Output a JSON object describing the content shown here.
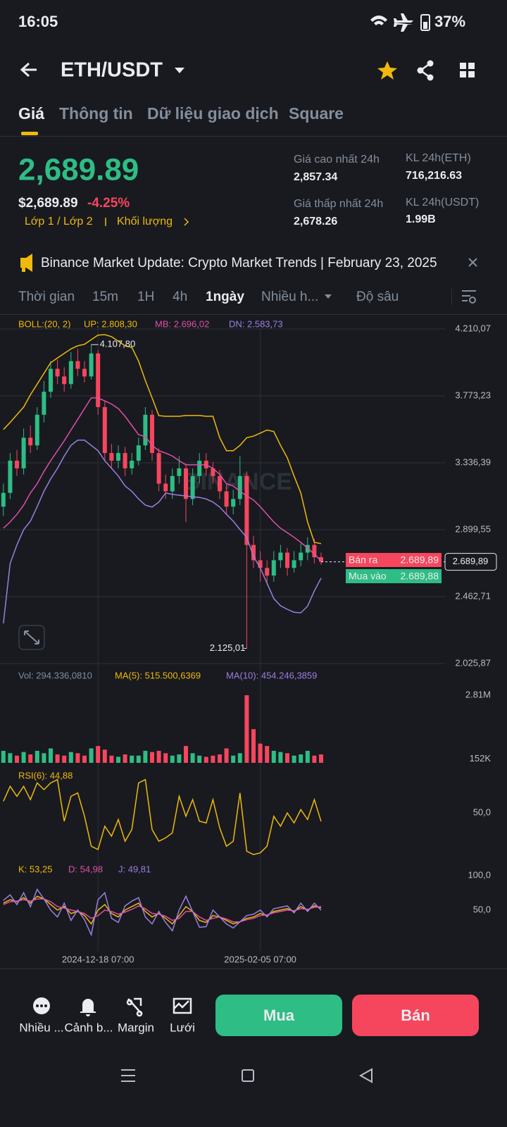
{
  "status": {
    "time": "16:05",
    "battery": "37%"
  },
  "header": {
    "pair": "ETH/USDT"
  },
  "tabs": [
    "Giá",
    "Thông tin",
    "Dữ liệu giao dịch",
    "Square"
  ],
  "price": {
    "last": "2,689.89",
    "usd": "$2,689.89",
    "change": "-4.25%",
    "tags": [
      "Lớp 1 / Lớp 2",
      "Khối lượng"
    ]
  },
  "stats": [
    {
      "label": "Giá cao nhất 24h",
      "value": "2,857.34"
    },
    {
      "label": "Giá thấp nhất 24h",
      "value": "2,678.26"
    },
    {
      "label": "KL 24h(ETH)",
      "value": "716,216.63"
    },
    {
      "label": "KL 24h(USDT)",
      "value": "1.99B"
    }
  ],
  "announcement": "Binance Market Update: Crypto Market Trends | February 23, 2025",
  "intervals": [
    "Thời gian",
    "15m",
    "1H",
    "4h",
    "1ngày",
    "Nhiều h...",
    "Độ sâu"
  ],
  "indicators": {
    "boll": [
      "BOLL:(20, 2)",
      "UP: 2.808,30",
      "MB: 2.696,02",
      "DN: 2.583,73"
    ],
    "vol": [
      "Vol: 294.336,0810",
      "MA(5): 515.500,6369",
      "MA(10): 454.246,3859"
    ],
    "rsi": [
      "RSI(6): 44,88"
    ],
    "kdj": [
      "K: 53,25",
      "D: 54,98",
      "J: 49,81"
    ]
  },
  "order_book": {
    "sell_label": "Bán ra",
    "sell_price": "2.689,89",
    "buy_label": "Mua vào",
    "buy_price": "2.689,88"
  },
  "watermark": "BINANCE",
  "bottom": {
    "actions": [
      "Nhiều ...",
      "Cảnh b...",
      "Margin",
      "Lưới"
    ],
    "buy": "Mua",
    "sell": "Bán"
  },
  "chart_data": [
    {
      "type": "candlestick",
      "categories": [
        null,
        null,
        null,
        null,
        null,
        null,
        null,
        null,
        null,
        null,
        null,
        null,
        null,
        null,
        "2024-12-18 07:00",
        null,
        null,
        null,
        null,
        null,
        null,
        null,
        null,
        null,
        null,
        null,
        null,
        null,
        null,
        null,
        null,
        null,
        null,
        null,
        null,
        null,
        null,
        null,
        "2025-02-05 07:00",
        null,
        null,
        null,
        null,
        null,
        null,
        null,
        null,
        null
      ],
      "open": [
        3050,
        3140,
        3350,
        3300,
        3500,
        3450,
        3650,
        3800,
        3950,
        3900,
        3850,
        4000,
        3950,
        3900,
        4050,
        3700,
        3400,
        3350,
        3400,
        3300,
        3350,
        3450,
        3650,
        3400,
        3200,
        3150,
        3250,
        3300,
        3100,
        3250,
        3350,
        3300,
        3250,
        3150,
        3050,
        3100,
        3250,
        2800,
        2700,
        2650,
        2600,
        2700,
        2750,
        2650,
        2700,
        2750,
        2800,
        2720
      ],
      "high": [
        3200,
        3400,
        3420,
        3560,
        3580,
        3700,
        3870,
        4000,
        4010,
        3960,
        4060,
        4080,
        4000,
        4107.8,
        4070,
        3740,
        3460,
        3450,
        3440,
        3400,
        3500,
        3700,
        3680,
        3430,
        3260,
        3300,
        3380,
        3330,
        3300,
        3400,
        3400,
        3340,
        3290,
        3200,
        3160,
        3380,
        3280,
        2860,
        2760,
        2700,
        2760,
        2800,
        2780,
        2760,
        2810,
        2850,
        2840,
        2750
      ],
      "low": [
        2990,
        3100,
        3250,
        3260,
        3400,
        3420,
        3600,
        3760,
        3850,
        3800,
        3820,
        3900,
        3860,
        3880,
        3650,
        3350,
        3300,
        3300,
        3250,
        3260,
        3320,
        3420,
        3350,
        3150,
        3100,
        3100,
        3200,
        2950,
        3060,
        3200,
        3250,
        3200,
        3100,
        3000,
        3000,
        3060,
        2125.01,
        2650,
        2560,
        2540,
        2560,
        2650,
        2600,
        2620,
        2660,
        2700,
        2680,
        2670
      ],
      "close": [
        3140,
        3350,
        3300,
        3500,
        3450,
        3650,
        3800,
        3950,
        3900,
        3850,
        4000,
        3950,
        3900,
        4050,
        3700,
        3400,
        3350,
        3400,
        3300,
        3350,
        3450,
        3650,
        3400,
        3200,
        3150,
        3250,
        3300,
        3100,
        3250,
        3350,
        3300,
        3250,
        3150,
        3050,
        3100,
        3250,
        2800,
        2700,
        2650,
        2600,
        2700,
        2750,
        2650,
        2700,
        2750,
        2800,
        2720,
        2689.89
      ],
      "up_color": "#2ebd85",
      "down_color": "#f6465d",
      "series": [
        {
          "color": "#f0b90b",
          "values": [
            3553,
            3600,
            3650,
            3700,
            3780,
            3850,
            3920,
            3990,
            4020,
            4050,
            4080,
            4100,
            4110,
            4140,
            4170,
            4173,
            4160,
            4130,
            4100,
            4090,
            4000,
            3874,
            3760,
            3644,
            3640,
            3640,
            3640,
            3645,
            3645,
            3645,
            3640,
            3640,
            3500,
            3415,
            3415,
            3450,
            3500,
            3510,
            3530,
            3550,
            3540,
            3450,
            3369,
            3250,
            3139,
            2950,
            2817,
            2808.3
          ]
        },
        {
          "color": "#e04fa5",
          "values": [
            2909,
            2950,
            3000,
            3060,
            3139,
            3200,
            3280,
            3350,
            3415,
            3480,
            3550,
            3620,
            3690,
            3760,
            3760,
            3740,
            3720,
            3690,
            3640,
            3580,
            3520,
            3507,
            3450,
            3415,
            3400,
            3380,
            3350,
            3323,
            3323,
            3323,
            3323,
            3300,
            3260,
            3200,
            3185,
            3150,
            3120,
            3093,
            3050,
            3000,
            2950,
            2909,
            2880,
            2850,
            2817,
            2780,
            2740,
            2696.02
          ]
        },
        {
          "color": "#9c7fe0",
          "values": [
            2288,
            2679,
            2800,
            2900,
            2955,
            3050,
            3150,
            3231,
            3300,
            3380,
            3450,
            3484,
            3484,
            3450,
            3415,
            3350,
            3300,
            3250,
            3185,
            3150,
            3100,
            3060,
            3047,
            3080,
            3139,
            3130,
            3125,
            3120,
            3115,
            3110,
            3100,
            3080,
            3047,
            3000,
            2955,
            2900,
            2850,
            2725,
            2650,
            2550,
            2450,
            2403,
            2380,
            2360,
            2357,
            2400,
            2500,
            2583.73
          ]
        }
      ],
      "annotations": [
        {
          "value": 4107.8,
          "label": "4.107,80"
        },
        {
          "value": 2125.01,
          "label": "2.125,01"
        }
      ],
      "last_price": {
        "value": 2689.89,
        "label": "2.689,89"
      },
      "ylim": [
        2025.87,
        4210.07
      ],
      "yticks": [
        {
          "value": 4210.07,
          "label": "4.210,07"
        },
        {
          "value": 3773.23,
          "label": "3.773,23"
        },
        {
          "value": 3336.39,
          "label": "3.336,39"
        },
        {
          "value": 2899.55,
          "label": "2.899,55"
        },
        {
          "value": 2462.71,
          "label": "2.462,71"
        },
        {
          "value": 2025.87,
          "label": "2.025,87"
        }
      ],
      "grid": true
    },
    {
      "type": "bar",
      "values": [
        0.5,
        0.4,
        0.3,
        0.45,
        0.35,
        0.5,
        0.4,
        0.6,
        0.35,
        0.3,
        0.45,
        0.4,
        0.3,
        0.6,
        0.7,
        0.55,
        0.3,
        0.25,
        0.35,
        0.3,
        0.3,
        0.5,
        0.45,
        0.5,
        0.4,
        0.3,
        0.35,
        0.7,
        0.4,
        0.3,
        0.25,
        0.3,
        0.35,
        0.6,
        0.3,
        0.4,
        2.81,
        1.4,
        0.8,
        0.7,
        0.5,
        0.45,
        0.4,
        0.3,
        0.35,
        0.5,
        0.3,
        0.35
      ],
      "ylim": [
        0,
        2.81
      ],
      "yticks": [
        {
          "value": 2.81,
          "label": "2.81M"
        },
        {
          "value": 0.152,
          "label": "152K"
        }
      ]
    },
    {
      "type": "line",
      "series": [
        {
          "color": "#f0b90b",
          "values": [
            57,
            66,
            60,
            66,
            58,
            68,
            64,
            68,
            70,
            45,
            60,
            62,
            48,
            30,
            28,
            42,
            36,
            46,
            33,
            40,
            68,
            70,
            40,
            33,
            35,
            38,
            60,
            48,
            58,
            45,
            44,
            58,
            41,
            30,
            33,
            62,
            27,
            25,
            26,
            30,
            48,
            42,
            50,
            44,
            52,
            46,
            58,
            44.88
          ]
        }
      ],
      "ylim": [
        20,
        75
      ],
      "yticks": [
        {
          "value": 50,
          "label": "50,0"
        }
      ]
    },
    {
      "type": "line",
      "series": [
        {
          "color": "#f0b90b",
          "values": [
            60,
            65,
            62,
            68,
            60,
            70,
            66,
            58,
            50,
            55,
            45,
            48,
            42,
            30,
            50,
            58,
            45,
            40,
            50,
            55,
            60,
            48,
            40,
            45,
            38,
            30,
            42,
            55,
            48,
            35,
            32,
            42,
            40,
            35,
            30,
            33,
            38,
            40,
            45,
            42,
            48,
            50,
            52,
            48,
            55,
            50,
            56,
            53.25
          ]
        },
        {
          "color": "#e04fa5",
          "values": [
            58,
            62,
            63,
            65,
            63,
            66,
            66,
            62,
            55,
            53,
            50,
            48,
            45,
            38,
            42,
            50,
            48,
            44,
            47,
            51,
            56,
            52,
            45,
            44,
            41,
            35,
            38,
            48,
            48,
            40,
            35,
            38,
            40,
            37,
            33,
            33,
            36,
            38,
            42,
            43,
            46,
            48,
            50,
            49,
            52,
            51,
            54,
            54.98
          ]
        },
        {
          "color": "#9c7fe0",
          "values": [
            64,
            72,
            58,
            75,
            55,
            80,
            66,
            50,
            40,
            60,
            35,
            50,
            36,
            14,
            65,
            75,
            38,
            32,
            56,
            63,
            68,
            40,
            30,
            48,
            32,
            20,
            50,
            70,
            48,
            25,
            26,
            50,
            40,
            30,
            24,
            33,
            42,
            44,
            50,
            40,
            52,
            54,
            56,
            46,
            60,
            48,
            60,
            49.81
          ]
        }
      ],
      "ylim": [
        0,
        100
      ],
      "yticks": [
        {
          "value": 100,
          "label": "100,0"
        },
        {
          "value": 50,
          "label": "50,0"
        }
      ]
    }
  ]
}
